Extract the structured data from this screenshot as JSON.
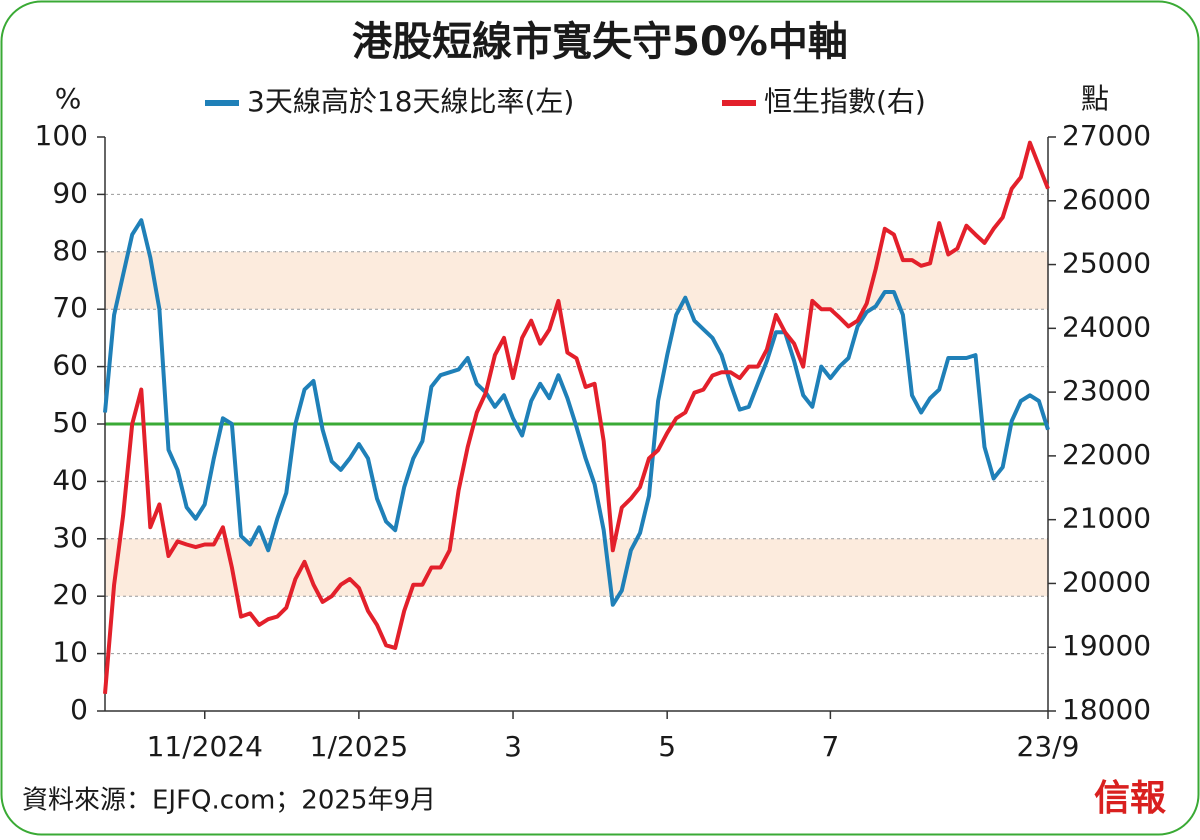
{
  "chart_data": {
    "type": "line",
    "title": "港股短線市寬失守50%中軸",
    "y_label": "%",
    "y2_label": "點",
    "source": "資料來源：EJFQ.com；2025年9月",
    "logo": "信報",
    "categories": [
      null,
      null,
      null,
      null,
      null,
      null,
      null,
      null,
      null,
      null,
      null,
      "11/2024",
      null,
      null,
      null,
      null,
      null,
      null,
      null,
      null,
      null,
      null,
      null,
      null,
      null,
      null,
      null,
      null,
      "1/2025",
      null,
      null,
      null,
      null,
      null,
      null,
      null,
      null,
      null,
      null,
      null,
      null,
      null,
      null,
      null,
      null,
      "3",
      null,
      null,
      null,
      null,
      null,
      null,
      null,
      null,
      null,
      null,
      null,
      null,
      null,
      null,
      null,
      null,
      "5",
      null,
      null,
      null,
      null,
      null,
      null,
      null,
      null,
      null,
      null,
      null,
      null,
      null,
      null,
      null,
      null,
      null,
      "7",
      null,
      null,
      null,
      null,
      null,
      null,
      null,
      null,
      null,
      null,
      null,
      null,
      null,
      null,
      null,
      null,
      null,
      null,
      null,
      null,
      null,
      null,
      null,
      "23/9"
    ],
    "series": [
      {
        "name": "3天線高於18天線比率(左)",
        "color": "#1f80b8",
        "values": [
          52,
          69,
          76,
          83,
          85.5,
          79,
          70,
          45.5,
          42,
          35.5,
          33.5,
          36,
          44,
          51,
          50,
          30.5,
          29,
          32,
          28,
          33.5,
          38,
          50,
          56,
          57.5,
          49,
          43.5,
          42,
          44,
          46.5,
          44,
          37,
          33,
          31.5,
          39,
          44,
          47,
          56.5,
          58.5,
          59,
          59.5,
          61.5,
          57,
          55.5,
          53,
          55,
          51,
          48,
          54,
          57,
          54.5,
          58.5,
          54.5,
          49.5,
          44,
          39.5,
          31.5,
          18.5,
          21,
          28,
          31,
          37.5,
          54,
          62,
          69,
          72,
          68,
          66.5,
          65,
          62,
          57,
          52.5,
          53,
          57,
          61,
          66,
          66,
          61,
          55,
          53,
          60,
          58,
          60,
          61.5,
          67,
          69.5,
          70.5,
          73,
          73,
          69,
          55,
          52,
          54.5,
          56,
          61.5,
          61.5,
          61.5,
          62,
          46,
          40.5,
          42.5,
          50.5,
          54,
          55,
          54,
          49
        ]
      },
      {
        "name": "恒生指數(右)",
        "color": "#e3202b",
        "axis": "y2",
        "values": [
          18270,
          19980,
          21060,
          22500,
          23040,
          20880,
          21240,
          20430,
          20660,
          20610,
          20570,
          20610,
          20610,
          20880,
          20250,
          19480,
          19530,
          19350,
          19440,
          19480,
          19620,
          20070,
          20340,
          19980,
          19710,
          19800,
          19980,
          20070,
          19930,
          19570,
          19350,
          19030,
          18990,
          19570,
          19980,
          19980,
          20250,
          20250,
          20520,
          21460,
          22140,
          22680,
          22990,
          23580,
          23850,
          23220,
          23850,
          24120,
          23760,
          23980,
          24430,
          23620,
          23530,
          23080,
          23130,
          22230,
          20520,
          21190,
          21330,
          21510,
          21960,
          22090,
          22360,
          22590,
          22680,
          22990,
          23040,
          23260,
          23310,
          23310,
          23220,
          23400,
          23400,
          23670,
          24210,
          23940,
          23760,
          23400,
          24430,
          24300,
          24300,
          24170,
          24030,
          24120,
          24390,
          24930,
          25560,
          25470,
          25070,
          25070,
          24980,
          25020,
          25650,
          25160,
          25250,
          25610,
          25470,
          25340,
          25560,
          25740,
          26190,
          26370,
          26910,
          26550,
          26190
        ]
      }
    ],
    "ylim": [
      0,
      100
    ],
    "yticks": [
      0,
      10,
      20,
      30,
      40,
      50,
      60,
      70,
      80,
      90,
      100
    ],
    "y2lim": [
      18000,
      27000
    ],
    "y2ticks": [
      18000,
      19000,
      20000,
      21000,
      22000,
      23000,
      24000,
      25000,
      26000,
      27000
    ],
    "grid": true,
    "bands": [
      [
        20,
        30
      ],
      [
        70,
        80
      ]
    ],
    "band_color": "#fcebdd",
    "reference_line": 50,
    "reference_color": "#3aaa35"
  }
}
